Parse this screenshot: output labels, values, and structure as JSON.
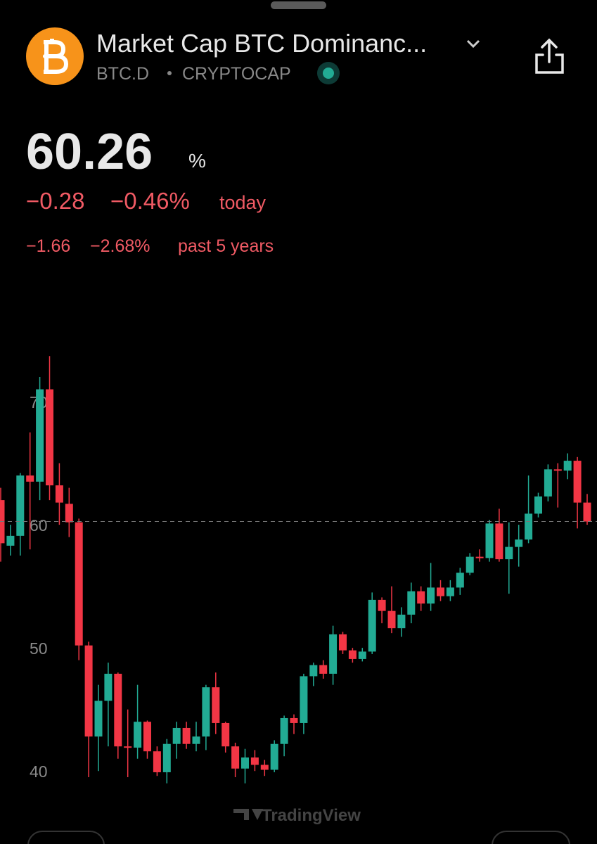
{
  "header": {
    "title": "Market Cap BTC Dominanc...",
    "symbol": "BTC.D",
    "exchange": "CRYPTOCAP",
    "price": "60.26",
    "unit": "%",
    "change": "−0.28",
    "change_pct": "−0.46%",
    "change_period": "today",
    "long_change": "−1.66",
    "long_change_pct": "−2.68%",
    "long_period": "past 5 years"
  },
  "chart_data": {
    "type": "candlestick",
    "up_color": "#22ab94",
    "down_color": "#f23645",
    "open": [
      62,
      58.3,
      59.1,
      64,
      63.5,
      71,
      63.2,
      61.7,
      60.2,
      50.2,
      42.8,
      45.7,
      47.9,
      42,
      41.9,
      44,
      41.6,
      39.9,
      42.2,
      43.5,
      42.2,
      42.8,
      46.8,
      43.9,
      42,
      40.2,
      41.1,
      40.5,
      40.1,
      42.2,
      44.3,
      43.9,
      47.7,
      48.6,
      47.9,
      51.1,
      49.8,
      49.1,
      49.7,
      53.9,
      53,
      51.6,
      52.7,
      54.6,
      53.6,
      54.9,
      54.2,
      54.9,
      56.1,
      57.4,
      57.3,
      60.1,
      57.2,
      58.2,
      58.8,
      60.9,
      62.3,
      64.5,
      64.4,
      65.2,
      61.8
    ],
    "high": [
      63,
      60,
      64.2,
      67.5,
      72,
      73.7,
      65,
      63,
      60.5,
      50.5,
      47,
      48.8,
      48,
      45,
      47,
      44.1,
      42,
      42.6,
      44,
      44,
      44,
      47,
      48,
      44,
      42.3,
      41.8,
      41.7,
      40.9,
      42.5,
      44.5,
      44.6,
      47.9,
      48.8,
      49,
      51.8,
      51.3,
      50,
      50,
      54.5,
      54.1,
      55,
      53.3,
      55.3,
      55,
      56.9,
      55.5,
      55.5,
      56.5,
      57.7,
      58,
      60.4,
      61.3,
      60.2,
      60,
      64,
      62.6,
      64.9,
      65,
      65.8,
      65.5,
      62.5
    ],
    "low": [
      57,
      57.5,
      57.5,
      58,
      62,
      62,
      60,
      59,
      49,
      39.5,
      40,
      42,
      41,
      39.5,
      41,
      41,
      39.6,
      39,
      41,
      41.8,
      41.6,
      41.7,
      43,
      41.5,
      39.5,
      39,
      40,
      39.6,
      39.9,
      41.2,
      43,
      43,
      46.9,
      47.5,
      47,
      49.5,
      48.8,
      48.9,
      49.5,
      52,
      51.2,
      50.9,
      52,
      53,
      53,
      53.8,
      53.8,
      54.3,
      55.9,
      57,
      57,
      57,
      54.4,
      56.6,
      58.5,
      60.6,
      61.9,
      61.4,
      63.7,
      59.7,
      60
    ],
    "close": [
      58.5,
      59.1,
      64,
      63.5,
      71,
      63.2,
      61.8,
      60.2,
      50.2,
      42.8,
      45.7,
      47.9,
      42,
      41.9,
      44,
      41.6,
      39.9,
      42.2,
      43.5,
      42.2,
      42.8,
      46.8,
      43.9,
      42,
      40.2,
      41.1,
      40.5,
      40.1,
      42.2,
      44.3,
      43.9,
      47.7,
      48.6,
      47.9,
      51.1,
      49.8,
      49.1,
      49.7,
      53.9,
      53,
      51.6,
      52.7,
      54.6,
      53.6,
      54.9,
      54.2,
      54.9,
      56.1,
      57.4,
      57.3,
      60.1,
      57.2,
      58.2,
      58.8,
      60.9,
      62.3,
      64.5,
      64.4,
      65.2,
      61.8,
      60.26
    ],
    "ylim": [
      37.5,
      75
    ],
    "yticks": [
      40,
      50,
      60,
      70
    ],
    "watermark": "TradingView"
  }
}
